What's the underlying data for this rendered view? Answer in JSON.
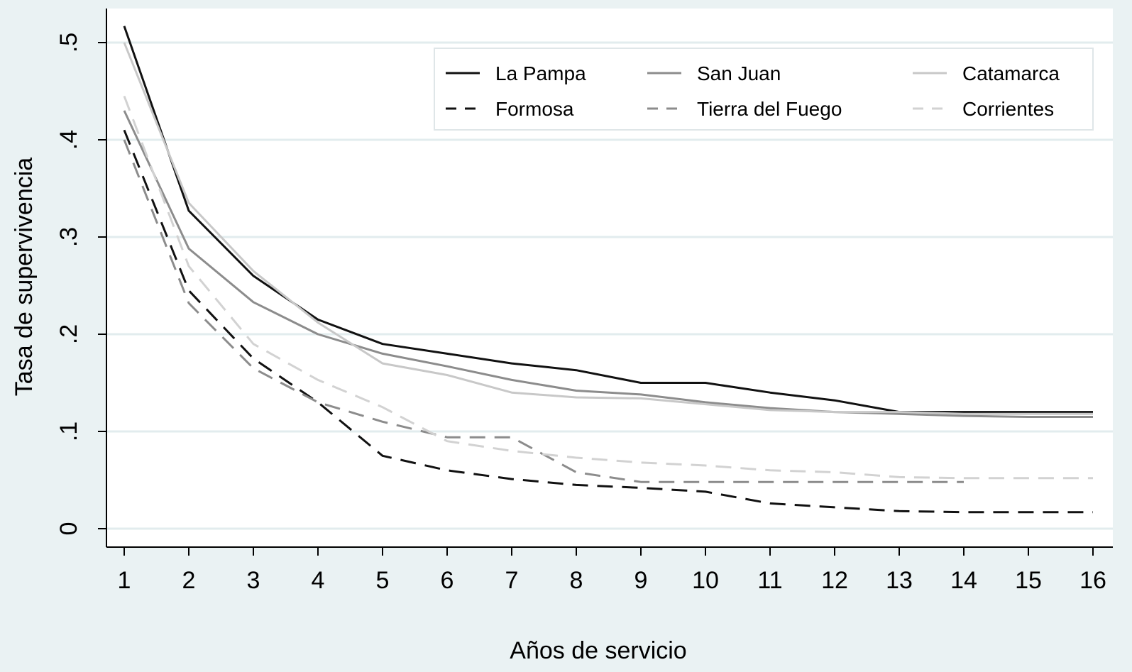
{
  "chart_data": {
    "type": "line",
    "xlabel": "Años de servicio",
    "ylabel": "Tasa de supervivencia",
    "xlim": [
      1,
      16
    ],
    "ylim": [
      0,
      0.5
    ],
    "x_ticks": [
      1,
      2,
      3,
      4,
      5,
      6,
      7,
      8,
      9,
      10,
      11,
      12,
      13,
      14,
      15,
      16
    ],
    "x_tick_labels": [
      "1",
      "2",
      "3",
      "4",
      "5",
      "6",
      "7",
      "8",
      "9",
      "10",
      "11",
      "12",
      "13",
      "14",
      "15",
      "16"
    ],
    "y_ticks": [
      0,
      0.1,
      0.2,
      0.3,
      0.4,
      0.5
    ],
    "y_tick_labels": [
      "0",
      ".1",
      ".2",
      ".3",
      ".4",
      ".5"
    ],
    "grid": true,
    "legend_position": "top-right",
    "series": [
      {
        "name": "La Pampa",
        "color": "#111111",
        "dash": "solid",
        "x": [
          1,
          2,
          3,
          4,
          5,
          6,
          7,
          8,
          9,
          10,
          11,
          12,
          13,
          14,
          15,
          16
        ],
        "values": [
          0.517,
          0.327,
          0.26,
          0.215,
          0.19,
          0.18,
          0.17,
          0.163,
          0.15,
          0.15,
          0.14,
          0.132,
          0.12,
          0.12,
          0.12,
          0.12
        ]
      },
      {
        "name": "Formosa",
        "color": "#111111",
        "dash": "dashed",
        "x": [
          1,
          2,
          3,
          4,
          5,
          6,
          7,
          8,
          9,
          10,
          11,
          12,
          13,
          14,
          15,
          16
        ],
        "values": [
          0.41,
          0.245,
          0.175,
          0.13,
          0.075,
          0.06,
          0.051,
          0.045,
          0.042,
          0.038,
          0.026,
          0.022,
          0.018,
          0.017,
          0.017,
          0.017
        ]
      },
      {
        "name": "San Juan",
        "color": "#8c8c8c",
        "dash": "solid",
        "x": [
          1,
          2,
          3,
          4,
          5,
          6,
          7,
          8,
          9,
          10,
          11,
          12,
          13,
          14,
          15,
          16
        ],
        "values": [
          0.43,
          0.288,
          0.233,
          0.2,
          0.18,
          0.167,
          0.153,
          0.142,
          0.138,
          0.13,
          0.124,
          0.12,
          0.118,
          0.116,
          0.115,
          0.115
        ]
      },
      {
        "name": "Tierra del Fuego",
        "color": "#8c8c8c",
        "dash": "dashed",
        "x": [
          1,
          2,
          3,
          4,
          5,
          6,
          7,
          8,
          9,
          10,
          11,
          12,
          13,
          14
        ],
        "values": [
          0.4,
          0.232,
          0.165,
          0.13,
          0.11,
          0.094,
          0.094,
          0.058,
          0.048,
          0.048,
          0.048,
          0.048,
          0.048,
          0.048
        ]
      },
      {
        "name": "Catamarca",
        "color": "#c8c8c8",
        "dash": "solid",
        "x": [
          1,
          2,
          3,
          4,
          5,
          6,
          7,
          8,
          9,
          10,
          11,
          12,
          13,
          14,
          15,
          16
        ],
        "values": [
          0.5,
          0.335,
          0.265,
          0.212,
          0.17,
          0.158,
          0.14,
          0.135,
          0.134,
          0.128,
          0.122,
          0.12,
          0.12,
          0.118,
          0.118,
          0.118
        ]
      },
      {
        "name": "Corrientes",
        "color": "#d2d2d2",
        "dash": "dashed",
        "x": [
          1,
          2,
          3,
          4,
          5,
          6,
          7,
          8,
          9,
          10,
          11,
          12,
          13,
          14,
          15,
          16
        ],
        "values": [
          0.445,
          0.27,
          0.19,
          0.153,
          0.125,
          0.09,
          0.08,
          0.073,
          0.068,
          0.065,
          0.06,
          0.058,
          0.053,
          0.052,
          0.052,
          0.052
        ]
      }
    ]
  }
}
